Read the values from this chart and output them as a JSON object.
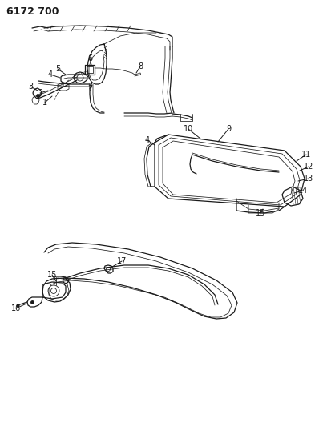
{
  "title": "6172 700",
  "bg_color": "#ffffff",
  "line_color": "#1a1a1a",
  "label_fontsize": 7,
  "fig_width": 4.08,
  "fig_height": 5.33,
  "dpi": 100
}
